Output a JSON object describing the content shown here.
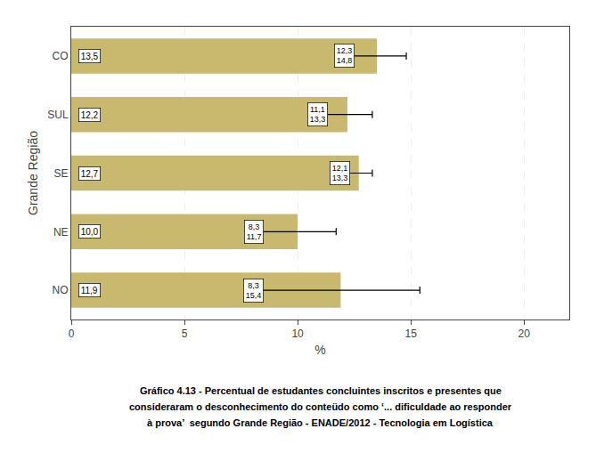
{
  "chart_data": {
    "type": "bar",
    "orientation": "horizontal",
    "categories": [
      "NO",
      "NE",
      "SE",
      "SUL",
      "CO"
    ],
    "values": [
      11.9,
      10.0,
      12.7,
      12.2,
      13.5
    ],
    "value_labels": [
      "11,9",
      "10,0",
      "12,7",
      "12,2",
      "13,5"
    ],
    "data_labels": true,
    "error_low": [
      8.3,
      8.3,
      12.1,
      11.1,
      12.3
    ],
    "error_high": [
      15.4,
      11.7,
      13.3,
      13.3,
      14.8
    ],
    "error_low_labels": [
      "8,3",
      "8,3",
      "12,1",
      "11,1",
      "12,3"
    ],
    "error_high_labels": [
      "15,4",
      "11,7",
      "13,3",
      "13,3",
      "14,8"
    ],
    "color": "#c8b96e",
    "xlabel": "%",
    "ylabel": "Grande Região",
    "xlim": [
      0,
      22
    ],
    "xticks": [
      0,
      5,
      10,
      15,
      20
    ],
    "grid": true,
    "caption": [
      "Gráfico 4.13 - Percentual de estudantes concluintes inscritos e presentes que",
      "consideraram o desconhecimento do conteüdo como ‘... dificuldade ao responder",
      "à prova’  segundo Grande Região - ENADE/2012 - Tecnologia em Logística"
    ]
  }
}
